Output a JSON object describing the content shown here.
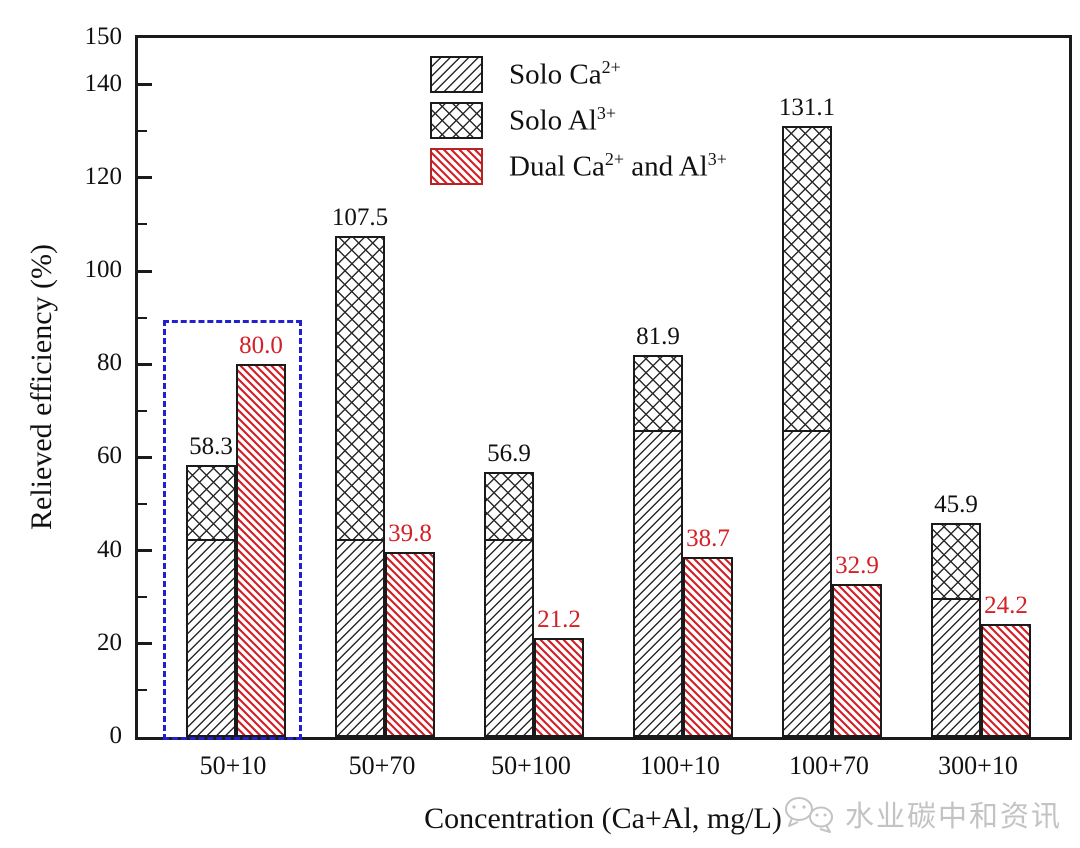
{
  "figure": {
    "watermark": {
      "text": "水业碳中和资讯"
    },
    "highlight_box": {
      "around_group": "50+10",
      "top_value": 90
    }
  },
  "colors": {
    "bar_outline": "#1a1a1a",
    "hatch_black": "#2b2b2b",
    "hatch_red": "#d42026",
    "value_label_red": "#d42026",
    "highlight_blue": "#2121cf",
    "watermark_gray": "#c3c3c3"
  },
  "legend": {
    "items": [
      {
        "name": "solo-ca",
        "pattern": "hatch-ca",
        "segments": [
          {
            "t": "Solo Ca"
          },
          {
            "t": "2+",
            "sup": true
          }
        ]
      },
      {
        "name": "solo-al",
        "pattern": "hatch-al",
        "segments": [
          {
            "t": "Solo Al"
          },
          {
            "t": "3+",
            "sup": true
          }
        ]
      },
      {
        "name": "dual-ca-al",
        "pattern": "hatch-dual",
        "segments": [
          {
            "t": "Dual Ca"
          },
          {
            "t": "2+",
            "sup": true
          },
          {
            "t": " and Al"
          },
          {
            "t": "3+",
            "sup": true
          }
        ]
      }
    ]
  },
  "chart_data": {
    "type": "bar",
    "title": "",
    "categories": [
      "50+10",
      "50+70",
      "50+100",
      "100+10",
      "100+70",
      "300+10"
    ],
    "series": [
      {
        "name": "Solo Ca2+",
        "pattern": "diagonal-forward",
        "color": "#2b2b2b",
        "stack": "solo",
        "values": [
          42.0,
          42.0,
          42.0,
          65.5,
          65.5,
          29.5
        ]
      },
      {
        "name": "Solo Al3+",
        "pattern": "crosshatch",
        "color": "#2b2b2b",
        "stack": "solo",
        "values": [
          16.3,
          65.5,
          14.9,
          16.4,
          65.6,
          16.4
        ]
      },
      {
        "name": "Dual Ca2+ and Al3+",
        "pattern": "diagonal-backward",
        "color": "#d42026",
        "values": [
          80.0,
          39.8,
          21.2,
          38.7,
          32.9,
          24.2
        ]
      }
    ],
    "stack_total_labels": [
      "58.3",
      "107.5",
      "56.9",
      "81.9",
      "131.1",
      "45.9"
    ],
    "dual_labels": [
      "80.0",
      "39.8",
      "21.2",
      "38.7",
      "32.9",
      "24.2"
    ],
    "xlabel": "Concentration (Ca+Al, mg/L)",
    "ylabel": "Relieved efficiency (%)",
    "ylim": [
      0,
      150
    ],
    "y_major_ticks": [
      0,
      20,
      40,
      60,
      80,
      100,
      120,
      140,
      150
    ],
    "y_minor_ticks": [
      10,
      30,
      50,
      70,
      90,
      110,
      130
    ],
    "legend_position": "top-center-inside",
    "grid": false
  }
}
